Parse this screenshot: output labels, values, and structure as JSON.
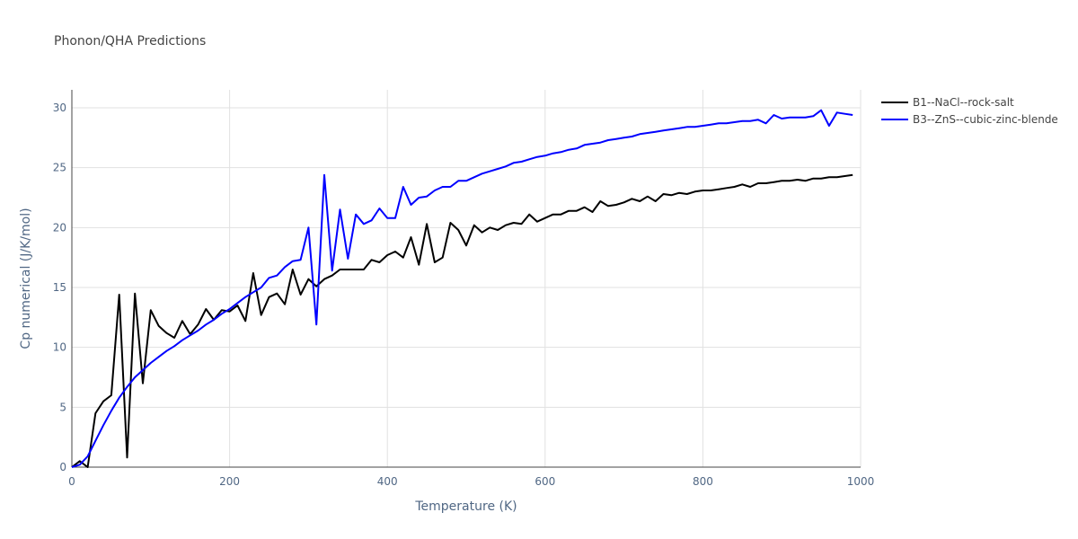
{
  "chart_data": {
    "type": "line",
    "title": "Phonon/QHA Predictions",
    "xlabel": "Temperature (K)",
    "ylabel": "Cp numerical (J/K/mol)",
    "xlim": [
      0,
      1000
    ],
    "ylim": [
      0,
      31.5
    ],
    "xticks": [
      0,
      200,
      400,
      600,
      800,
      1000
    ],
    "yticks": [
      0,
      5,
      10,
      15,
      20,
      25,
      30
    ],
    "grid": true,
    "legend_position": "top-right",
    "series": [
      {
        "name": "B1--NaCl--rock-salt",
        "color": "#000000",
        "x": [
          0,
          10,
          20,
          30,
          40,
          50,
          60,
          70,
          80,
          90,
          100,
          110,
          120,
          130,
          140,
          150,
          160,
          170,
          180,
          190,
          200,
          210,
          220,
          230,
          240,
          250,
          260,
          270,
          280,
          290,
          300,
          310,
          320,
          330,
          340,
          350,
          360,
          370,
          380,
          390,
          400,
          410,
          420,
          430,
          440,
          450,
          460,
          470,
          480,
          490,
          500,
          510,
          520,
          530,
          540,
          550,
          560,
          570,
          580,
          590,
          600,
          610,
          620,
          630,
          640,
          650,
          660,
          670,
          680,
          690,
          700,
          710,
          720,
          730,
          740,
          750,
          760,
          770,
          780,
          790,
          800,
          810,
          820,
          830,
          840,
          850,
          860,
          870,
          880,
          890,
          900,
          910,
          920,
          930,
          940,
          950,
          960,
          970,
          980,
          990
        ],
        "y": [
          0,
          0.5,
          0,
          4.5,
          5.5,
          6,
          14.4,
          0.8,
          14.5,
          7,
          13.1,
          11.8,
          11.2,
          10.8,
          12.2,
          11.1,
          11.9,
          13.2,
          12.3,
          13.1,
          13,
          13.5,
          12.2,
          16.2,
          12.7,
          14.2,
          14.5,
          13.6,
          16.5,
          14.4,
          15.7,
          15.1,
          15.7,
          16,
          16.5,
          16.5,
          16.5,
          16.5,
          17.3,
          17.1,
          17.7,
          18,
          17.5,
          19.2,
          16.9,
          20.3,
          17.1,
          17.5,
          20.4,
          19.8,
          18.5,
          20.2,
          19.6,
          20,
          19.8,
          20.2,
          20.4,
          20.3,
          21.1,
          20.5,
          20.8,
          21.1,
          21.1,
          21.4,
          21.4,
          21.7,
          21.3,
          22.2,
          21.8,
          21.9,
          22.1,
          22.4,
          22.2,
          22.6,
          22.2,
          22.8,
          22.7,
          22.9,
          22.8,
          23,
          23.1,
          23.1,
          23.2,
          23.3,
          23.4,
          23.6,
          23.4,
          23.7,
          23.7,
          23.8,
          23.9,
          23.9,
          24,
          23.9,
          24.1,
          24.1,
          24.2,
          24.2,
          24.3,
          24.4
        ]
      },
      {
        "name": "B3--ZnS--cubic-zinc-blende",
        "color": "#0000ff",
        "x": [
          0,
          10,
          20,
          30,
          40,
          50,
          60,
          70,
          80,
          90,
          100,
          110,
          120,
          130,
          140,
          150,
          160,
          170,
          180,
          190,
          200,
          210,
          220,
          230,
          240,
          250,
          260,
          270,
          280,
          290,
          300,
          310,
          320,
          330,
          340,
          350,
          360,
          370,
          380,
          390,
          400,
          410,
          420,
          430,
          440,
          450,
          460,
          470,
          480,
          490,
          500,
          510,
          520,
          530,
          540,
          550,
          560,
          570,
          580,
          590,
          600,
          610,
          620,
          630,
          640,
          650,
          660,
          670,
          680,
          690,
          700,
          710,
          720,
          730,
          740,
          750,
          760,
          770,
          780,
          790,
          800,
          810,
          820,
          830,
          840,
          850,
          860,
          870,
          880,
          890,
          900,
          910,
          920,
          930,
          940,
          950,
          960,
          970,
          980,
          990
        ],
        "y": [
          0,
          0.2,
          0.9,
          2.2,
          3.5,
          4.7,
          5.8,
          6.7,
          7.5,
          8.1,
          8.7,
          9.2,
          9.7,
          10.1,
          10.6,
          11,
          11.4,
          11.9,
          12.3,
          12.8,
          13.2,
          13.7,
          14.2,
          14.6,
          15,
          15.8,
          16,
          16.7,
          17.2,
          17.3,
          20,
          11.9,
          24.4,
          16.4,
          21.5,
          17.4,
          21.1,
          20.3,
          20.6,
          21.6,
          20.8,
          20.8,
          23.4,
          21.9,
          22.5,
          22.6,
          23.1,
          23.4,
          23.4,
          23.9,
          23.9,
          24.2,
          24.5,
          24.7,
          24.9,
          25.1,
          25.4,
          25.5,
          25.7,
          25.9,
          26,
          26.2,
          26.3,
          26.5,
          26.6,
          26.9,
          27,
          27.1,
          27.3,
          27.4,
          27.5,
          27.6,
          27.8,
          27.9,
          28,
          28.1,
          28.2,
          28.3,
          28.4,
          28.4,
          28.5,
          28.6,
          28.7,
          28.7,
          28.8,
          28.9,
          28.9,
          29,
          28.7,
          29.4,
          29.1,
          29.2,
          29.2,
          29.2,
          29.3,
          29.8,
          28.5,
          29.6,
          29.5,
          29.4
        ]
      }
    ]
  }
}
